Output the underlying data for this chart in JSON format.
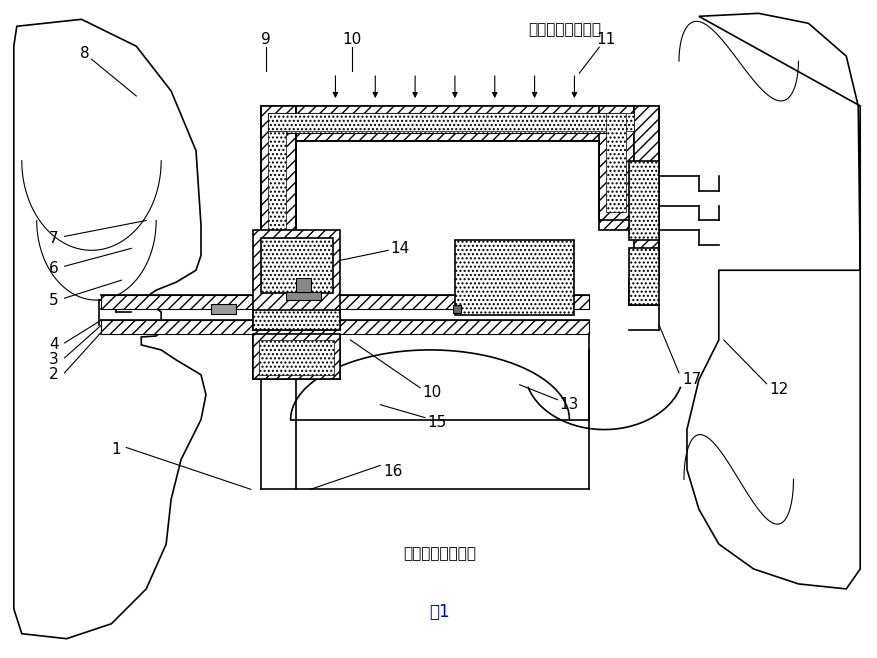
{
  "title": "图1",
  "title_color": "#0000CD",
  "label_inner": "内氢侧（高压区）",
  "label_outer": "机外侧（低压区）",
  "bg_color": "#FFFFFF"
}
